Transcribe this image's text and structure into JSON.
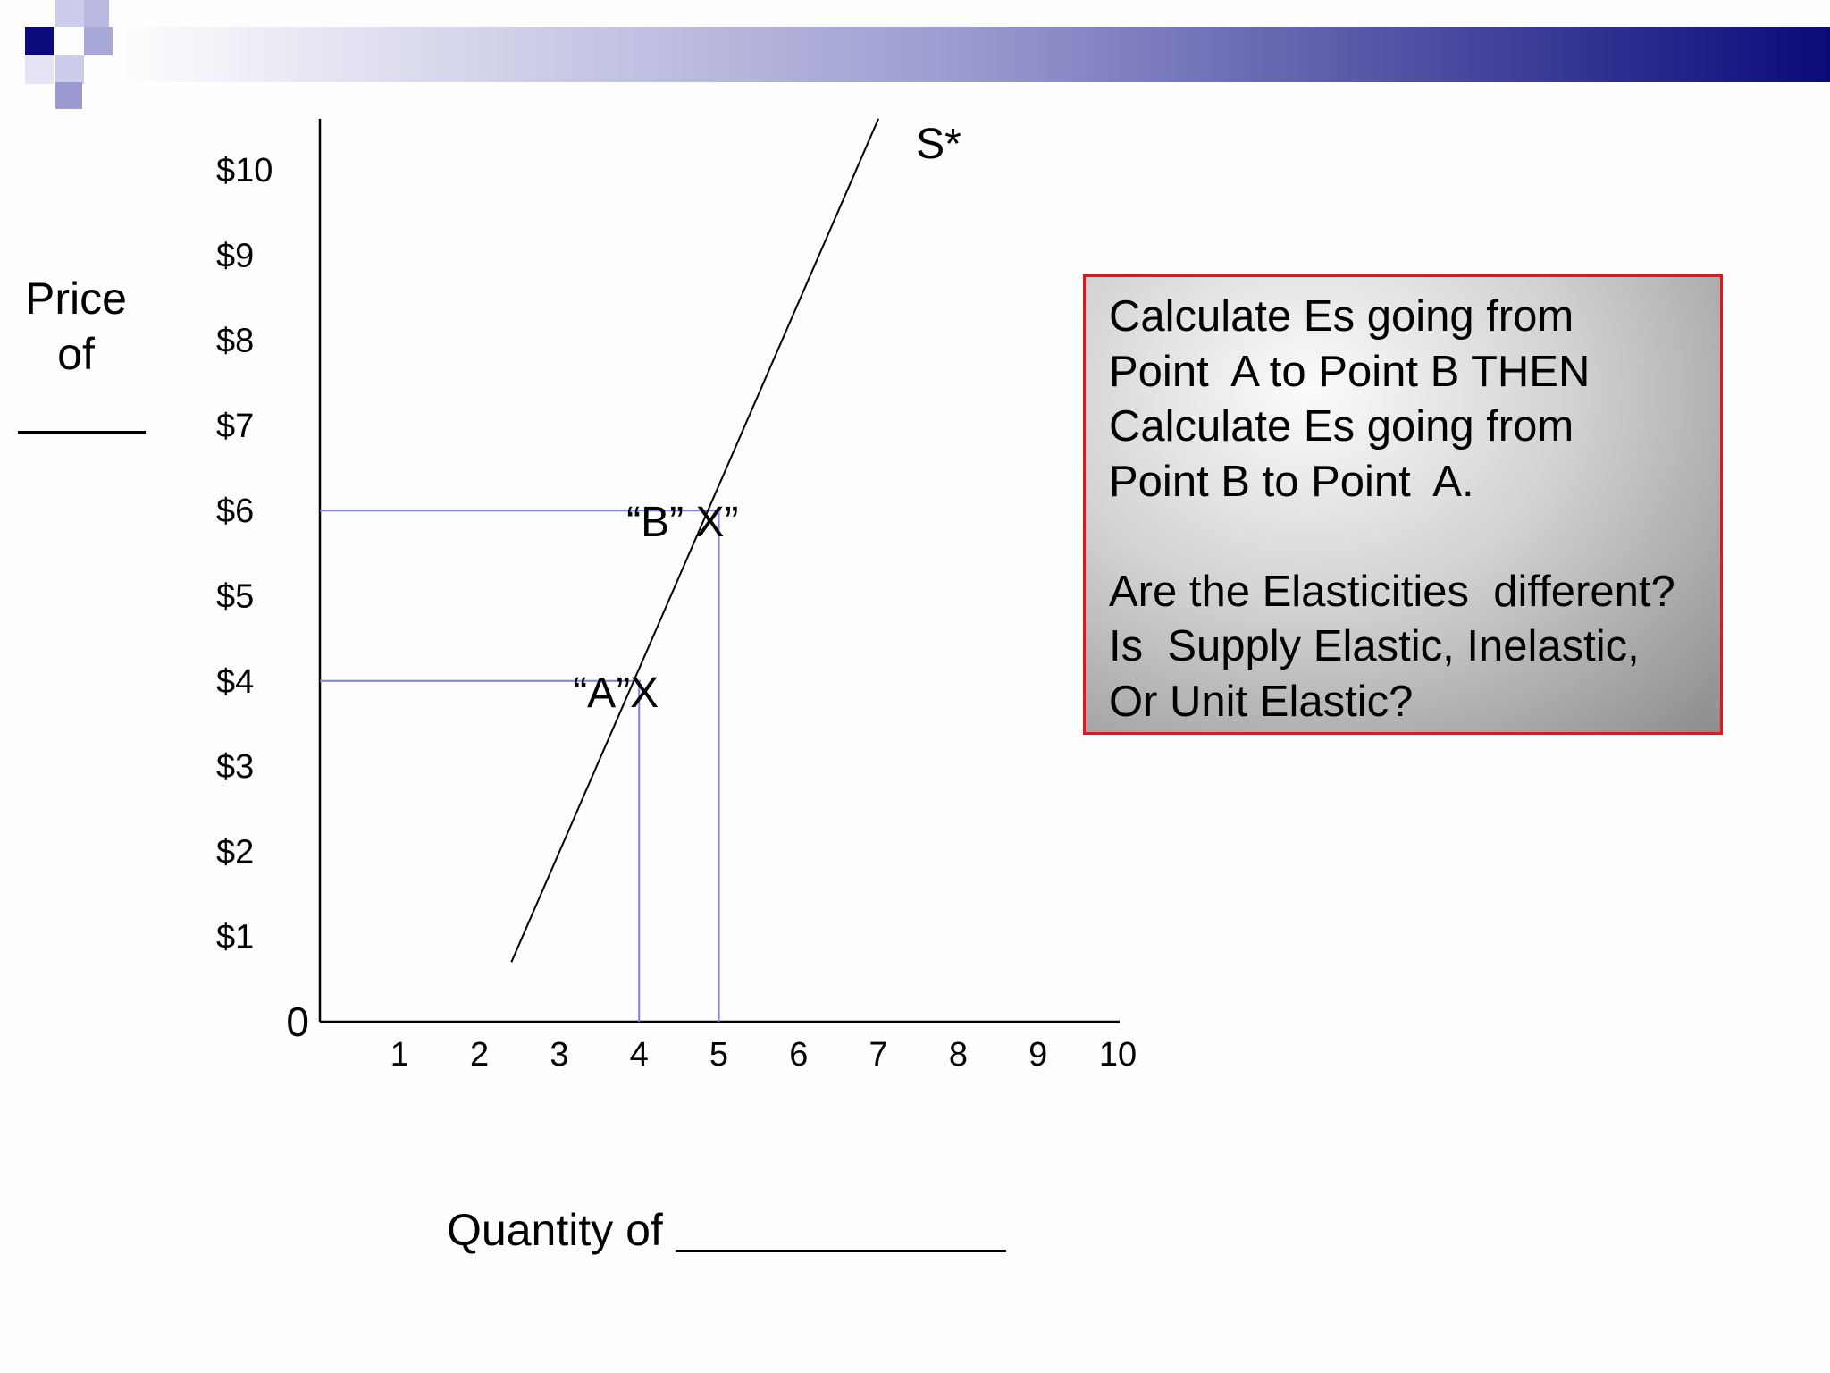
{
  "colors": {
    "header_start": "#ffffff",
    "header_end": "#0a0a7a",
    "guide_lines": "#8080e0",
    "callout_border": "#e8141b",
    "axis": "#000000"
  },
  "y_axis_label": {
    "line1": "Price",
    "line2": "of"
  },
  "x_axis_label": "Quantity of",
  "callout": {
    "lines": [
      "Calculate Es going from",
      "Point  A to Point B THEN",
      "Calculate Es going from",
      "Point B to Point  A.",
      "",
      "Are the Elasticities  different?",
      "Is  Supply Elastic, Inelastic,",
      "Or Unit Elastic?"
    ]
  },
  "chart_data": {
    "type": "line",
    "title": "",
    "xlabel": "Quantity of",
    "ylabel": "Price of",
    "xlim": [
      0,
      10
    ],
    "ylim": [
      0,
      10.6
    ],
    "origin_label": "0",
    "x_ticks": [
      {
        "value": 1,
        "label": "1"
      },
      {
        "value": 2,
        "label": "2"
      },
      {
        "value": 3,
        "label": "3"
      },
      {
        "value": 4,
        "label": "4"
      },
      {
        "value": 5,
        "label": "5"
      },
      {
        "value": 6,
        "label": "6"
      },
      {
        "value": 7,
        "label": "7"
      },
      {
        "value": 8,
        "label": "8"
      },
      {
        "value": 9,
        "label": "9"
      },
      {
        "value": 10,
        "label": "10"
      }
    ],
    "y_ticks": [
      {
        "value": 1,
        "label": "$1"
      },
      {
        "value": 2,
        "label": "$2"
      },
      {
        "value": 3,
        "label": "$3"
      },
      {
        "value": 4,
        "label": "$4"
      },
      {
        "value": 5,
        "label": "$5"
      },
      {
        "value": 6,
        "label": "$6"
      },
      {
        "value": 7,
        "label": "$7"
      },
      {
        "value": 8,
        "label": "$8"
      },
      {
        "value": 9,
        "label": "$9"
      },
      {
        "value": 10,
        "label": "$10"
      }
    ],
    "series": [
      {
        "name": "S*",
        "x": [
          2.4,
          7.0
        ],
        "y": [
          0.7,
          10.6
        ]
      }
    ],
    "points": [
      {
        "label": "“A”X",
        "x": 4,
        "y": 4
      },
      {
        "label": "“B” X”",
        "x": 5,
        "y": 6
      }
    ]
  }
}
